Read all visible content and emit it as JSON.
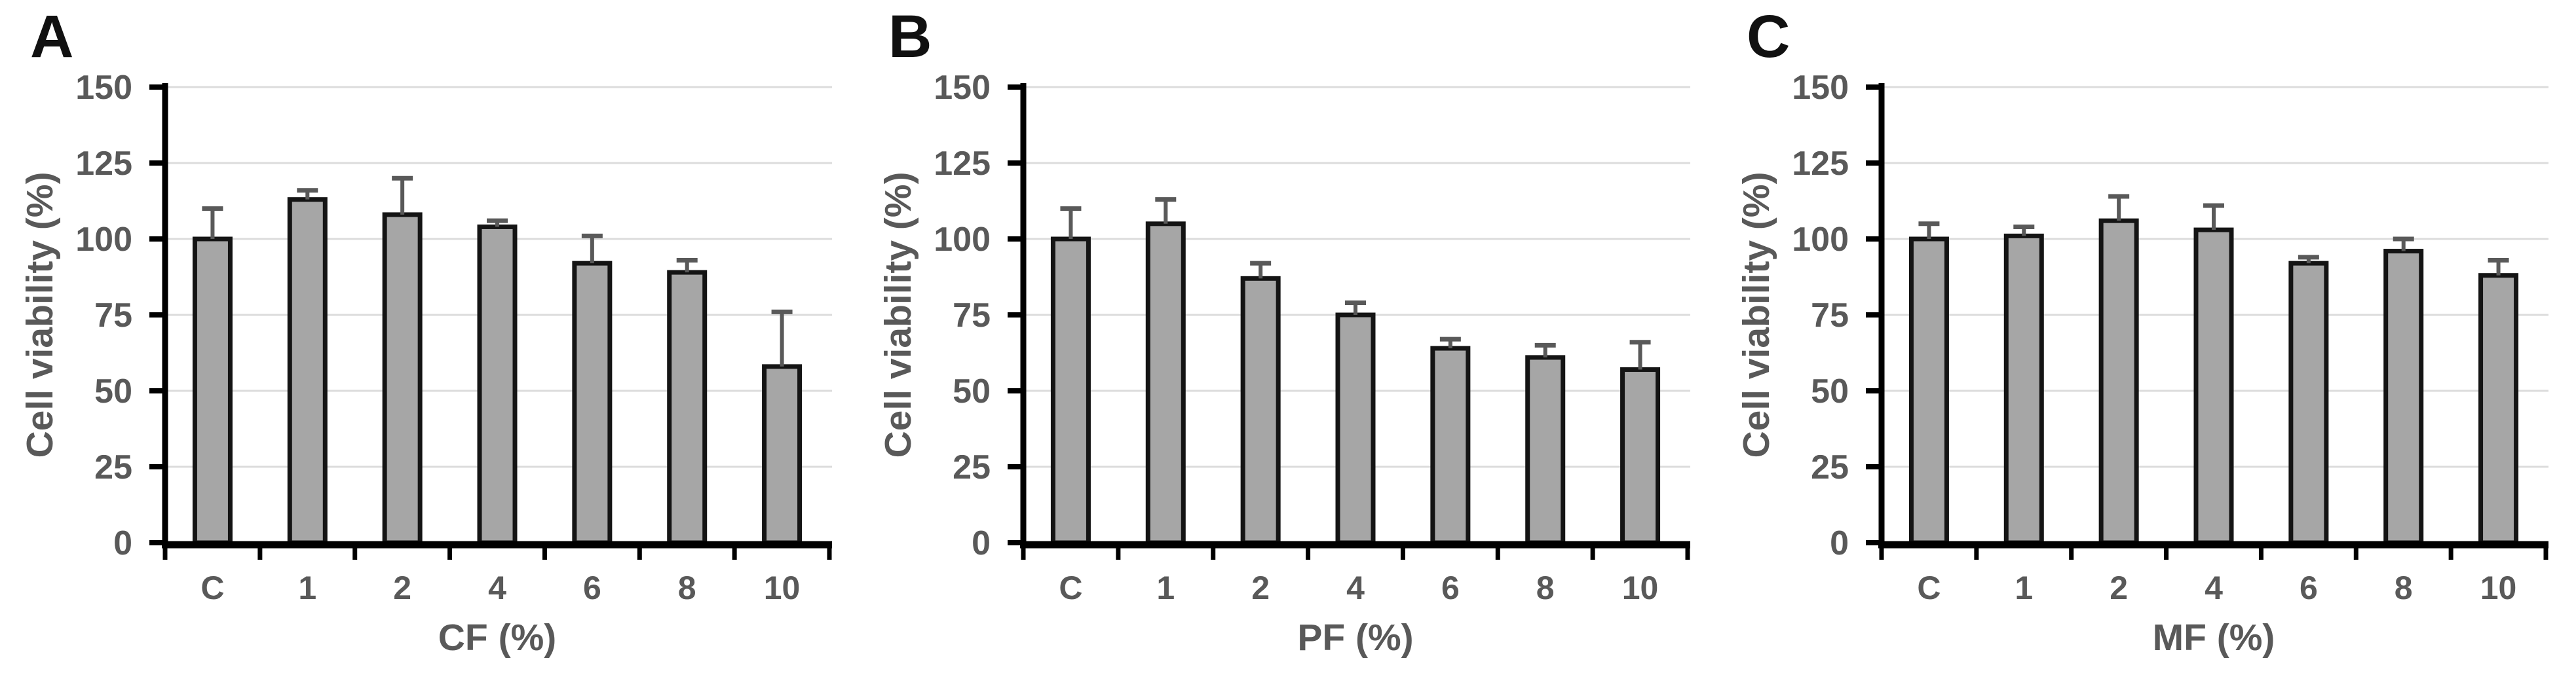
{
  "figure": {
    "background": "#ffffff",
    "description": "Three-panel bar figure of cell viability (%) versus treatment concentration"
  },
  "style": {
    "bar_fill": "#a6a6a6",
    "bar_stroke": "#141414",
    "error_color": "#595959",
    "grid_color": "#dcdcdc",
    "axis_color": "#000000",
    "tick_color": "#000000",
    "label_color": "#595959",
    "panel_letter_color": "#111111"
  },
  "chart_data": [
    {
      "type": "bar",
      "panel": "A",
      "title": "",
      "xlabel": "CF (%)",
      "ylabel": "Cell viability (%)",
      "categories": [
        "C",
        "1",
        "2",
        "4",
        "6",
        "8",
        "10"
      ],
      "values": [
        100,
        113,
        108,
        104,
        92,
        89,
        58
      ],
      "errors_up": [
        10,
        3,
        12,
        2,
        9,
        4,
        18
      ],
      "ylim": [
        0,
        150
      ],
      "yticks": [
        0,
        25,
        50,
        75,
        100,
        125,
        150
      ],
      "grid": true,
      "legend": "none"
    },
    {
      "type": "bar",
      "panel": "B",
      "title": "",
      "xlabel": "PF (%)",
      "ylabel": "Cell viability (%)",
      "categories": [
        "C",
        "1",
        "2",
        "4",
        "6",
        "8",
        "10"
      ],
      "values": [
        100,
        105,
        87,
        75,
        64,
        61,
        57
      ],
      "errors_up": [
        10,
        8,
        5,
        4,
        3,
        4,
        9
      ],
      "ylim": [
        0,
        150
      ],
      "yticks": [
        0,
        25,
        50,
        75,
        100,
        125,
        150
      ],
      "grid": true,
      "legend": "none"
    },
    {
      "type": "bar",
      "panel": "C",
      "title": "",
      "xlabel": "MF (%)",
      "ylabel": "Cell viability (%)",
      "categories": [
        "C",
        "1",
        "2",
        "4",
        "6",
        "8",
        "10"
      ],
      "values": [
        100,
        101,
        106,
        103,
        92,
        96,
        88
      ],
      "errors_up": [
        5,
        3,
        8,
        8,
        2,
        4,
        5
      ],
      "ylim": [
        0,
        150
      ],
      "yticks": [
        0,
        25,
        50,
        75,
        100,
        125,
        150
      ],
      "grid": true,
      "legend": "none"
    }
  ]
}
